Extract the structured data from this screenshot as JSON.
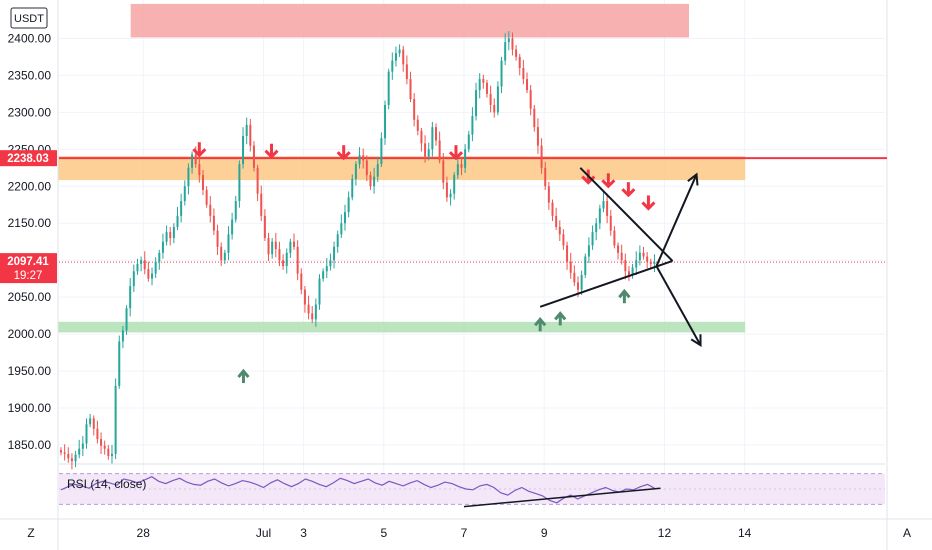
{
  "chart_data": {
    "type": "candlestick",
    "currency": "USDT",
    "y_tick_labels": [
      "2400.00",
      "2350.00",
      "2300.00",
      "2250.00",
      "2200.00",
      "2150.00",
      "2100.00",
      "2050.00",
      "2000.00",
      "1950.00",
      "1900.00",
      "1850.00"
    ],
    "y_ticks": [
      2400,
      2350,
      2300,
      2250,
      2200,
      2150,
      2100,
      2050,
      2000,
      1950,
      1900,
      1850
    ],
    "ylim": [
      1827,
      2452
    ],
    "x_tick_labels": [
      "28",
      "Jul",
      "3",
      "5",
      "7",
      "9",
      "12",
      "14"
    ],
    "x_ticks": [
      1.0,
      4.0,
      5.0,
      7.0,
      9.0,
      11.0,
      14.0,
      16.0
    ],
    "xlim": [
      -1.1,
      19.5
    ],
    "current_price": "2097.41",
    "countdown": "19:27",
    "resistance_line": {
      "label": "2238.03",
      "value": 2238.03,
      "color": "#f23645"
    },
    "zones": [
      {
        "name": "supply-top",
        "from_x": 0.7,
        "to_x": 14.6,
        "y_low": 2402,
        "y_high": 2446,
        "color": "#f7a9a8"
      },
      {
        "name": "resistance",
        "from_x": -1.1,
        "to_x": 16.0,
        "y_low": 2209,
        "y_high": 2240,
        "color": "#fccb8b"
      },
      {
        "name": "support",
        "from_x": -1.1,
        "to_x": 16.0,
        "y_low": 2003,
        "y_high": 2016,
        "color": "#b4e2b9"
      }
    ],
    "candles_close": [
      1840,
      1838,
      1832,
      1828,
      1837,
      1845,
      1852,
      1878,
      1886,
      1872,
      1858,
      1849,
      1845,
      1835,
      1838,
      1930,
      1990,
      2005,
      2035,
      2065,
      2085,
      2095,
      2100,
      2088,
      2075,
      2082,
      2098,
      2110,
      2125,
      2138,
      2130,
      2145,
      2160,
      2180,
      2200,
      2225,
      2243,
      2230,
      2215,
      2195,
      2175,
      2160,
      2140,
      2118,
      2100,
      2110,
      2135,
      2155,
      2180,
      2230,
      2268,
      2283,
      2255,
      2225,
      2190,
      2160,
      2130,
      2108,
      2125,
      2115,
      2100,
      2092,
      2110,
      2125,
      2118,
      2082,
      2060,
      2040,
      2028,
      2020,
      2040,
      2075,
      2085,
      2092,
      2100,
      2118,
      2135,
      2150,
      2165,
      2185,
      2210,
      2230,
      2242,
      2235,
      2215,
      2200,
      2213,
      2230,
      2265,
      2310,
      2355,
      2370,
      2380,
      2385,
      2365,
      2345,
      2318,
      2290,
      2275,
      2258,
      2240,
      2250,
      2280,
      2262,
      2235,
      2205,
      2185,
      2190,
      2215,
      2230,
      2225,
      2250,
      2270,
      2295,
      2330,
      2345,
      2340,
      2325,
      2310,
      2300,
      2335,
      2370,
      2395,
      2400,
      2385,
      2375,
      2360,
      2345,
      2330,
      2305,
      2280,
      2255,
      2225,
      2200,
      2178,
      2160,
      2145,
      2135,
      2120,
      2098,
      2083,
      2070,
      2060,
      2080,
      2105,
      2120,
      2138,
      2150,
      2170,
      2180,
      2160,
      2140,
      2120,
      2110,
      2100,
      2085,
      2080,
      2090,
      2100,
      2110,
      2105,
      2098,
      2095,
      2097
    ],
    "resistance_arrows": [
      [
        2.4,
        2242
      ],
      [
        4.2,
        2240
      ],
      [
        6.0,
        2238
      ],
      [
        8.8,
        2238
      ],
      [
        12.1,
        2205
      ],
      [
        12.6,
        2200
      ],
      [
        13.1,
        2188
      ],
      [
        13.6,
        2170
      ]
    ],
    "support_arrows": [
      [
        3.5,
        1950
      ],
      [
        10.9,
        2020
      ],
      [
        11.4,
        2028
      ],
      [
        13.0,
        2058
      ]
    ],
    "triangle": {
      "upper": [
        [
          11.9,
          2225
        ],
        [
          14.2,
          2099
        ]
      ],
      "lower": [
        [
          10.9,
          2037
        ],
        [
          14.2,
          2099
        ]
      ],
      "projections": [
        {
          "from": [
            13.8,
            2092
          ],
          "to": [
            14.8,
            2216
          ]
        },
        {
          "from": [
            13.8,
            2092
          ],
          "to": [
            14.9,
            1985
          ]
        }
      ]
    },
    "rsi": {
      "label": "RSI (14, close)",
      "band": [
        30,
        70
      ],
      "values": [
        49,
        53,
        56,
        54,
        51,
        57,
        60,
        58,
        55,
        63,
        61,
        58,
        62,
        66,
        60,
        57,
        61,
        64,
        59,
        56,
        55,
        60,
        63,
        58,
        54,
        57,
        61,
        59,
        56,
        52,
        58,
        62,
        57,
        53,
        57,
        63,
        60,
        56,
        53,
        58,
        64,
        61,
        57,
        60,
        63,
        58,
        55,
        60,
        57,
        54,
        58,
        61,
        56,
        52,
        55,
        59,
        57,
        53,
        50,
        49,
        54,
        56,
        52,
        45,
        42,
        48,
        52,
        47,
        44,
        41,
        35,
        32,
        38,
        42,
        37,
        41,
        45,
        49,
        52,
        48,
        46,
        50,
        49,
        53,
        56,
        51
      ],
      "divergence_line": {
        "from": [
          9.0,
          27
        ],
        "to": [
          13.9,
          51
        ]
      }
    }
  },
  "ui": {
    "z_button": "Z",
    "a_button": "A"
  }
}
